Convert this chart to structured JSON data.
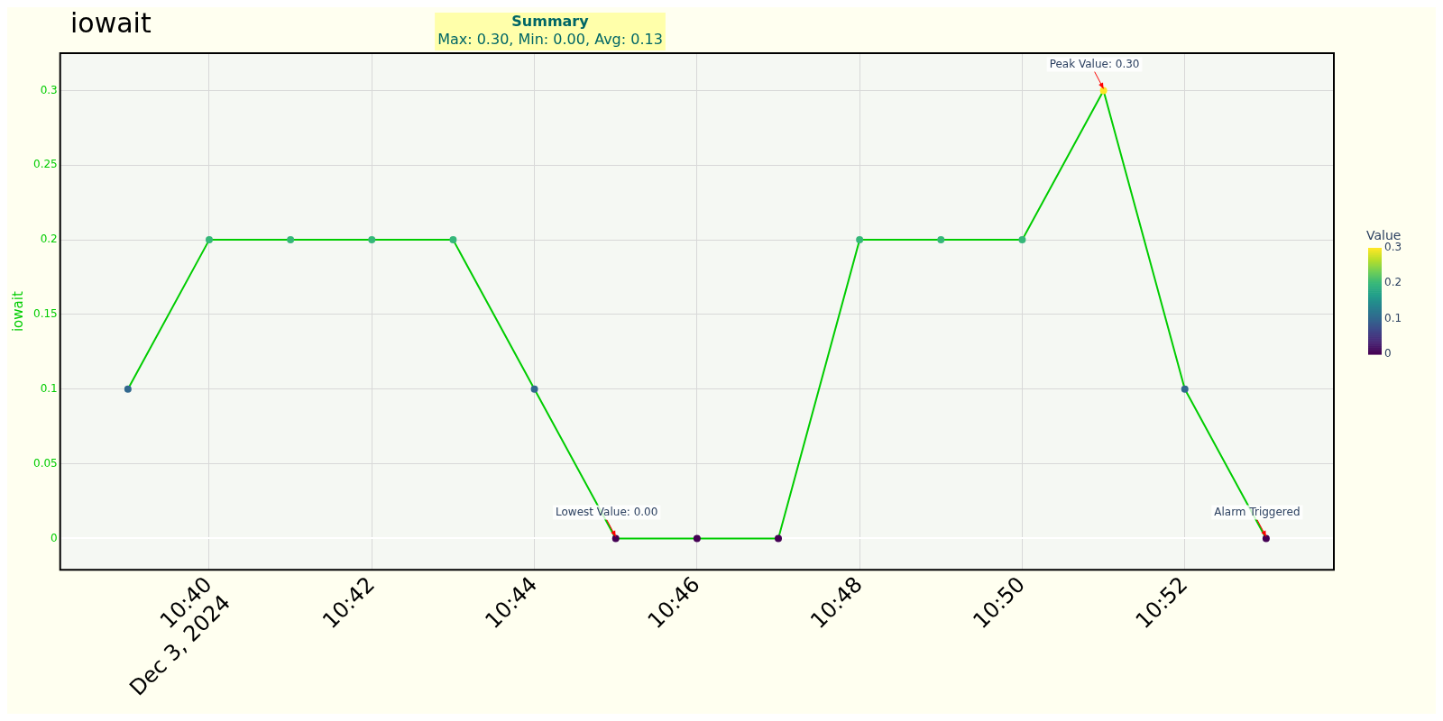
{
  "chart_data": {
    "type": "line",
    "title": "iowait",
    "ylabel": "iowait",
    "clabel": "Value",
    "x": [
      "2024-12-03T10:39",
      "2024-12-03T10:40",
      "2024-12-03T10:41",
      "2024-12-03T10:42",
      "2024-12-03T10:43",
      "2024-12-03T10:44",
      "2024-12-03T10:45",
      "2024-12-03T10:46",
      "2024-12-03T10:47",
      "2024-12-03T10:48",
      "2024-12-03T10:49",
      "2024-12-03T10:50",
      "2024-12-03T10:51",
      "2024-12-03T10:52",
      "2024-12-03T10:53"
    ],
    "series": [
      {
        "color": "#00cc00",
        "values": [
          0.1,
          0.2,
          0.2,
          0.2,
          0.2,
          0.1,
          0,
          0,
          0,
          0.2,
          0.2,
          0.2,
          0.3,
          0.1,
          0
        ]
      }
    ],
    "clim": [
      0,
      0.3
    ],
    "cticks": [
      0,
      0.1,
      0.2,
      0.3
    ],
    "xlim": [
      "2024-12-03T10:38:10",
      "2024-12-03T10:53:50"
    ],
    "xticks": [
      {
        "value": "2024-12-03T10:40",
        "label": "10:40\nDec 3, 2024"
      },
      {
        "value": "2024-12-03T10:42",
        "label": "10:42"
      },
      {
        "value": "2024-12-03T10:44",
        "label": "10:44"
      },
      {
        "value": "2024-12-03T10:46",
        "label": "10:46"
      },
      {
        "value": "2024-12-03T10:48",
        "label": "10:48"
      },
      {
        "value": "2024-12-03T10:50",
        "label": "10:50"
      },
      {
        "value": "2024-12-03T10:52",
        "label": "10:52"
      }
    ],
    "ylim": [
      -0.021,
      0.325
    ],
    "yticks": [
      0,
      0.05,
      0.1,
      0.15,
      0.2,
      0.25,
      0.3
    ],
    "grid": true,
    "legend": false,
    "marker": "circle",
    "line_style": "solid",
    "annotations": [
      "Summary",
      "Max: 0.30, Min: 0.00, Avg: 0.13",
      {
        "text": "Peak Value: 0.30",
        "x": "2024-12-03T10:51",
        "y": 0.3
      },
      {
        "text": "Lowest Value: 0.00",
        "x": "2024-12-03T10:45",
        "y": 0
      },
      {
        "text": "Alarm Triggered",
        "x": "2024-12-03T10:53",
        "y": 0
      }
    ]
  }
}
